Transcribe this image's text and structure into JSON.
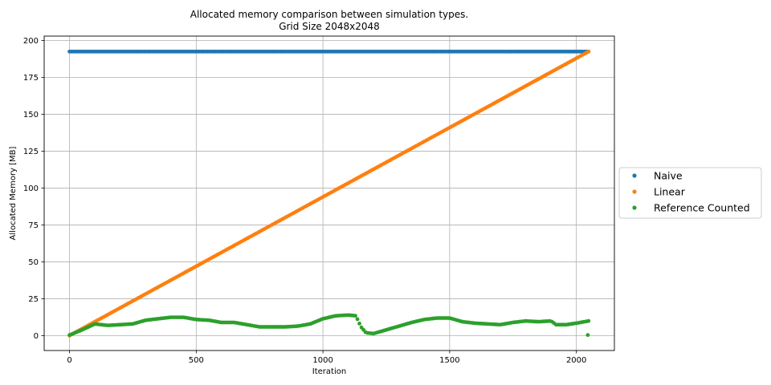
{
  "chart_data": {
    "type": "scatter",
    "title": "Allocated memory comparison between simulation types.",
    "subtitle": "Grid Size 2048x2048",
    "xlabel": "Iteration",
    "ylabel": "Allocated Memory [MB]",
    "xlim": [
      -100,
      2150
    ],
    "ylim": [
      -10,
      203
    ],
    "xticks": [
      0,
      500,
      1000,
      1500,
      2000
    ],
    "yticks": [
      0,
      25,
      50,
      75,
      100,
      125,
      150,
      175,
      200
    ],
    "grid": true,
    "legend": "outside-right",
    "series": [
      {
        "name": "Naive",
        "color": "#1f77b4",
        "kind": "constant",
        "x_range": [
          0,
          2048
        ],
        "value": 192.5
      },
      {
        "name": "Linear",
        "color": "#ff7f0e",
        "kind": "linear",
        "x_range": [
          0,
          2048
        ],
        "y_range": [
          0.1,
          192.5
        ]
      },
      {
        "name": "Reference Counted",
        "color": "#2ca02c",
        "kind": "profile",
        "points": [
          [
            0,
            0.5
          ],
          [
            50,
            4
          ],
          [
            100,
            8
          ],
          [
            150,
            7
          ],
          [
            200,
            7.5
          ],
          [
            250,
            8
          ],
          [
            300,
            10.5
          ],
          [
            350,
            11.5
          ],
          [
            400,
            12.5
          ],
          [
            450,
            12.5
          ],
          [
            500,
            11
          ],
          [
            550,
            10.5
          ],
          [
            600,
            9
          ],
          [
            650,
            9
          ],
          [
            700,
            7.5
          ],
          [
            750,
            6
          ],
          [
            800,
            6
          ],
          [
            850,
            6
          ],
          [
            900,
            6.5
          ],
          [
            950,
            8
          ],
          [
            1000,
            11.5
          ],
          [
            1050,
            13.5
          ],
          [
            1100,
            14
          ],
          [
            1130,
            13.5
          ],
          [
            1150,
            6
          ],
          [
            1170,
            2
          ],
          [
            1200,
            1.5
          ],
          [
            1250,
            4
          ],
          [
            1300,
            6.5
          ],
          [
            1350,
            9
          ],
          [
            1400,
            11
          ],
          [
            1450,
            12
          ],
          [
            1500,
            12
          ],
          [
            1550,
            9.5
          ],
          [
            1600,
            8.5
          ],
          [
            1650,
            8
          ],
          [
            1700,
            7.5
          ],
          [
            1750,
            9
          ],
          [
            1800,
            10
          ],
          [
            1850,
            9.5
          ],
          [
            1900,
            10
          ],
          [
            1920,
            7.5
          ],
          [
            1960,
            7.5
          ],
          [
            2000,
            8.5
          ],
          [
            2048,
            10
          ]
        ],
        "extra_points": [
          [
            2045,
            0.5
          ]
        ]
      }
    ]
  }
}
